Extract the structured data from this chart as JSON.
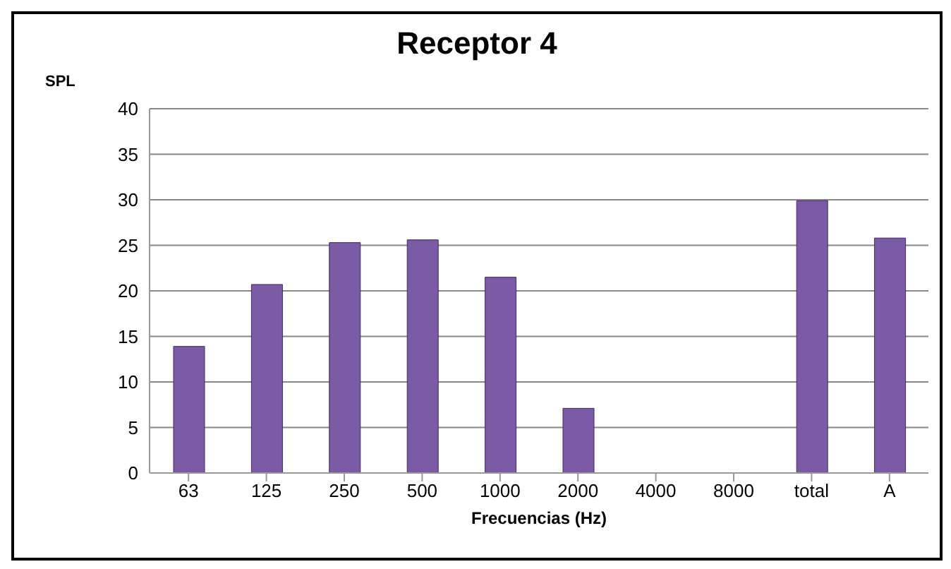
{
  "chart_data": {
    "type": "bar",
    "title": "Receptor 4",
    "ylabel": "SPL",
    "xlabel": "Frecuencias (Hz)",
    "categories": [
      "63",
      "125",
      "250",
      "500",
      "1000",
      "2000",
      "4000",
      "8000",
      "total",
      "A"
    ],
    "values": [
      13.9,
      20.7,
      25.3,
      25.6,
      21.5,
      7.1,
      null,
      null,
      29.9,
      25.8
    ],
    "color": "#7b5aa6",
    "ylim": [
      0,
      40
    ],
    "yticks": [
      0,
      5,
      10,
      15,
      20,
      25,
      30,
      35,
      40
    ],
    "grid": "y"
  }
}
